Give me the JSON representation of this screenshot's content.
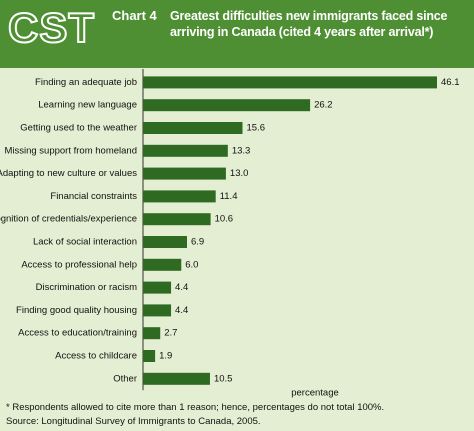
{
  "chart_data": {
    "type": "bar",
    "orientation": "horizontal",
    "logo": "CST",
    "chart_label": "Chart 4",
    "title": "Greatest difficulties new immigrants faced since arriving in Canada (cited 4 years after arrival*)",
    "categories": [
      "Finding an adequate job",
      "Learning new language",
      "Getting used to the weather",
      "Missing support from homeland",
      "Adapting to new culture or values",
      "Financial constraints",
      "Recognition of credentials/experience",
      "Lack of social interaction",
      "Access to professional help",
      "Discrimination or racism",
      "Finding good quality housing",
      "Access to education/training",
      "Access to childcare",
      "Other"
    ],
    "values": [
      46.1,
      26.2,
      15.6,
      13.3,
      13.0,
      11.4,
      10.6,
      6.9,
      6.0,
      4.4,
      4.4,
      2.7,
      1.9,
      10.5
    ],
    "value_labels": [
      "46.1",
      "26.2",
      "15.6",
      "13.3",
      "13.0",
      "11.4",
      "10.6",
      "6.9",
      "6.0",
      "4.4",
      "4.4",
      "2.7",
      "1.9",
      "10.5"
    ],
    "color": "#2f6a22",
    "xlabel": "percentage",
    "footnote": "* Respondents allowed to cite more than 1 reason; hence, percentages do not total 100%.",
    "source": "Source: Longitudinal Survey of Immigrants to Canada, 2005."
  }
}
